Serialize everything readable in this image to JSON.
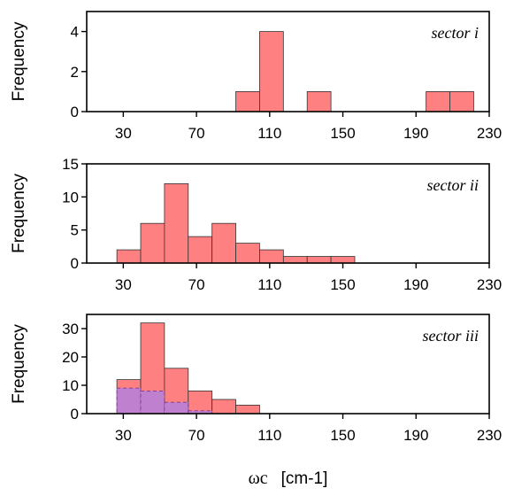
{
  "chart_data": [
    {
      "type": "bar",
      "annotation": "sector i",
      "ylabel": "Frequency",
      "xlim": [
        10,
        230
      ],
      "ylim": [
        0,
        5
      ],
      "xticks": [
        30,
        70,
        110,
        150,
        190,
        230
      ],
      "yticks": [
        0,
        2,
        4
      ],
      "bin_width": 13,
      "grid": false,
      "series": [
        {
          "color": "#ff8080",
          "x": [
            98,
            111,
            137,
            202,
            215
          ],
          "values": [
            1,
            4,
            1,
            1,
            1
          ]
        }
      ]
    },
    {
      "type": "bar",
      "annotation": "sector ii",
      "ylabel": "Frequency",
      "xlim": [
        10,
        230
      ],
      "ylim": [
        0,
        15
      ],
      "xticks": [
        30,
        70,
        110,
        150,
        190,
        230
      ],
      "yticks": [
        0,
        5,
        10,
        15
      ],
      "bin_width": 13,
      "grid": false,
      "series": [
        {
          "color": "#ff8080",
          "x": [
            33,
            46,
            59,
            72,
            85,
            98,
            111,
            124,
            137,
            150
          ],
          "values": [
            2,
            6,
            12,
            4,
            6,
            3,
            2,
            1,
            1,
            1
          ]
        }
      ]
    },
    {
      "type": "bar",
      "annotation": "sector iii",
      "ylabel": "Frequency",
      "xlabel": "ωc",
      "xlabel_unit": "[cm-1]",
      "xlim": [
        10,
        230
      ],
      "ylim": [
        0,
        35
      ],
      "xticks": [
        30,
        70,
        110,
        150,
        190,
        230
      ],
      "yticks": [
        0,
        10,
        20,
        30
      ],
      "bin_width": 13,
      "grid": false,
      "series": [
        {
          "color": "#ff8080",
          "x": [
            33,
            46,
            59,
            72,
            85,
            98
          ],
          "values": [
            12,
            32,
            16,
            8,
            5,
            3
          ]
        },
        {
          "color": "#c080d0",
          "dashed": true,
          "x": [
            33,
            46,
            59,
            72
          ],
          "values": [
            9,
            8,
            4,
            1
          ]
        }
      ]
    }
  ]
}
